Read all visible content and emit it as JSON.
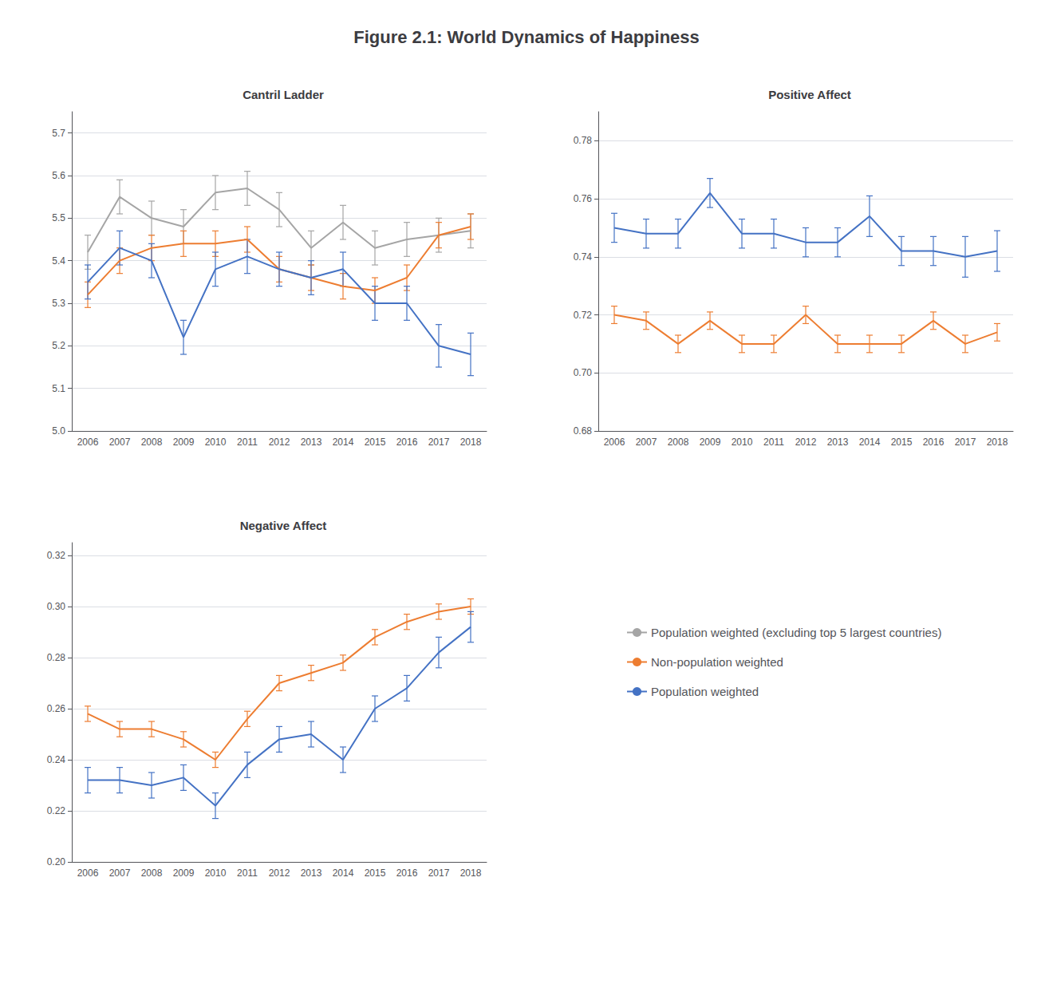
{
  "title": "Figure 2.1: World Dynamics of Happiness",
  "legend": "lower right",
  "chart_data": [
    {
      "type": "line",
      "title": "Cantril Ladder",
      "categories": [
        "2006",
        "2007",
        "2008",
        "2009",
        "2010",
        "2011",
        "2012",
        "2013",
        "2014",
        "2015",
        "2016",
        "2017",
        "2018"
      ],
      "series": [
        {
          "name": "Population weighted (excluding top 5 largest countries)",
          "color": "#A5A5A5",
          "values": [
            5.42,
            5.55,
            5.5,
            5.48,
            5.56,
            5.57,
            5.52,
            5.43,
            5.49,
            5.43,
            5.45,
            5.46,
            5.47
          ],
          "errors": [
            0.04,
            0.04,
            0.04,
            0.04,
            0.04,
            0.04,
            0.04,
            0.04,
            0.04,
            0.04,
            0.04,
            0.04,
            0.04
          ]
        },
        {
          "name": "Non-population weighted",
          "color": "#ED7D31",
          "values": [
            5.32,
            5.4,
            5.43,
            5.44,
            5.44,
            5.45,
            5.38,
            5.36,
            5.34,
            5.33,
            5.36,
            5.46,
            5.48
          ],
          "errors": [
            0.03,
            0.03,
            0.03,
            0.03,
            0.03,
            0.03,
            0.03,
            0.03,
            0.03,
            0.03,
            0.03,
            0.03,
            0.03
          ]
        },
        {
          "name": "Population weighted",
          "color": "#4472C4",
          "values": [
            5.35,
            5.43,
            5.4,
            5.22,
            5.38,
            5.41,
            5.38,
            5.36,
            5.38,
            5.3,
            5.3,
            5.2,
            5.18
          ],
          "errors": [
            0.04,
            0.04,
            0.04,
            0.04,
            0.04,
            0.04,
            0.04,
            0.04,
            0.04,
            0.04,
            0.04,
            0.05,
            0.05
          ]
        }
      ],
      "ylim": [
        5.0,
        5.75
      ],
      "yticks": [
        {
          "value": 5.0,
          "label": "5.0"
        },
        5.1,
        5.2,
        5.3,
        5.4,
        5.5,
        5.6,
        5.7
      ],
      "grid": true
    },
    {
      "type": "line",
      "title": "Positive Affect",
      "categories": [
        "2006",
        "2007",
        "2008",
        "2009",
        "2010",
        "2011",
        "2012",
        "2013",
        "2014",
        "2015",
        "2016",
        "2017",
        "2018"
      ],
      "series": [
        {
          "name": "Non-population weighted",
          "color": "#ED7D31",
          "values": [
            0.72,
            0.718,
            0.71,
            0.718,
            0.71,
            0.71,
            0.72,
            0.71,
            0.71,
            0.71,
            0.718,
            0.71,
            0.714
          ],
          "errors": [
            0.003,
            0.003,
            0.003,
            0.003,
            0.003,
            0.003,
            0.003,
            0.003,
            0.003,
            0.003,
            0.003,
            0.003,
            0.003
          ]
        },
        {
          "name": "Population weighted",
          "color": "#4472C4",
          "values": [
            0.75,
            0.748,
            0.748,
            0.762,
            0.748,
            0.748,
            0.745,
            0.745,
            0.754,
            0.742,
            0.742,
            0.74,
            0.742
          ],
          "errors": [
            0.005,
            0.005,
            0.005,
            0.005,
            0.005,
            0.005,
            0.005,
            0.005,
            0.007,
            0.005,
            0.005,
            0.007,
            0.007
          ]
        }
      ],
      "ylim": [
        0.68,
        0.79
      ],
      "yticks": [
        0.68,
        {
          "value": 0.7,
          "label": "0.70"
        },
        0.72,
        0.74,
        0.76,
        0.78
      ],
      "grid": true
    },
    {
      "type": "line",
      "title": "Negative Affect",
      "categories": [
        "2006",
        "2007",
        "2008",
        "2009",
        "2010",
        "2011",
        "2012",
        "2013",
        "2014",
        "2015",
        "2016",
        "2017",
        "2018"
      ],
      "series": [
        {
          "name": "Non-population weighted",
          "color": "#ED7D31",
          "values": [
            0.258,
            0.252,
            0.252,
            0.248,
            0.24,
            0.256,
            0.27,
            0.274,
            0.278,
            0.288,
            0.294,
            0.298,
            0.3
          ],
          "errors": [
            0.003,
            0.003,
            0.003,
            0.003,
            0.003,
            0.003,
            0.003,
            0.003,
            0.003,
            0.003,
            0.003,
            0.003,
            0.003
          ]
        },
        {
          "name": "Population weighted",
          "color": "#4472C4",
          "values": [
            0.232,
            0.232,
            0.23,
            0.233,
            0.222,
            0.238,
            0.248,
            0.25,
            0.24,
            0.26,
            0.268,
            0.282,
            0.292
          ],
          "errors": [
            0.005,
            0.005,
            0.005,
            0.005,
            0.005,
            0.005,
            0.005,
            0.005,
            0.005,
            0.005,
            0.005,
            0.006,
            0.006
          ]
        }
      ],
      "ylim": [
        0.2,
        0.325
      ],
      "yticks": [
        {
          "value": 0.2,
          "label": "0.20"
        },
        0.22,
        0.24,
        0.26,
        0.28,
        {
          "value": 0.3,
          "label": "0.30"
        },
        0.32
      ],
      "grid": true
    }
  ]
}
